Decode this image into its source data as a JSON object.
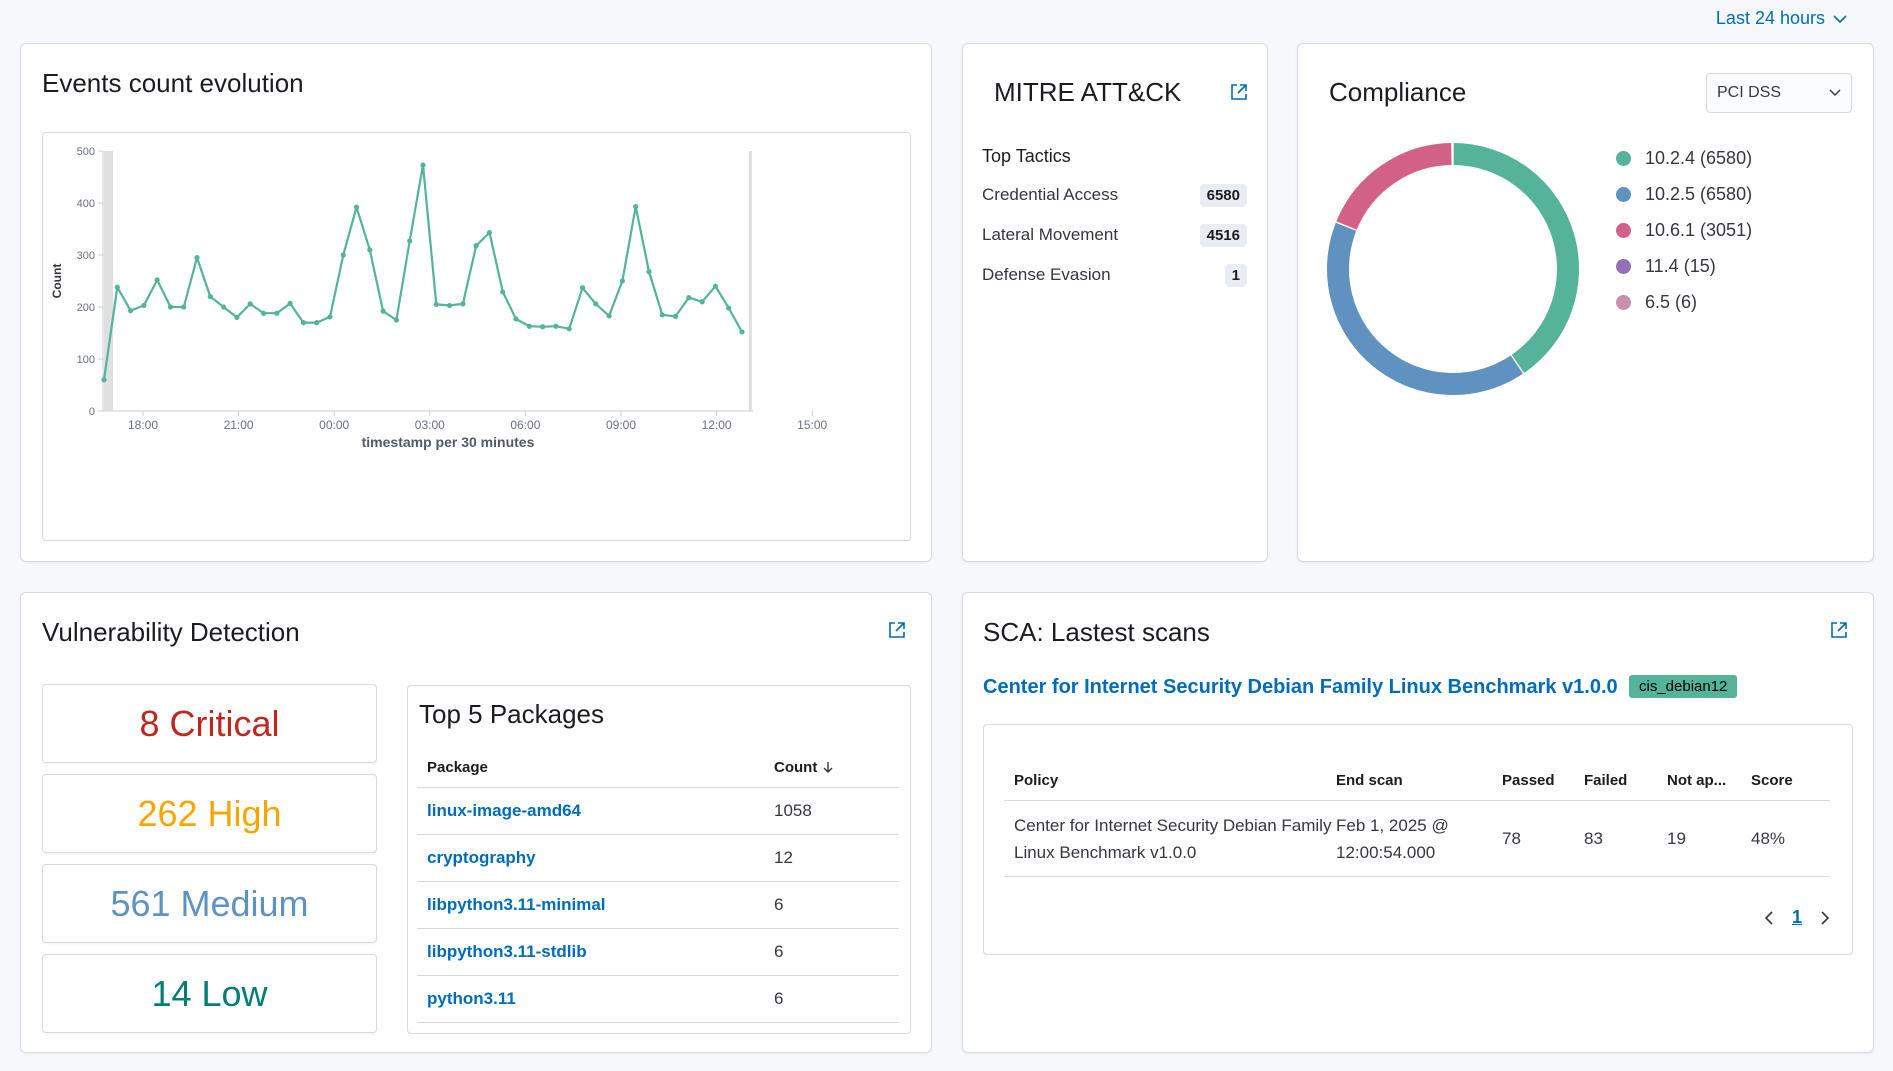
{
  "timepicker": {
    "label": "Last 24 hours"
  },
  "events": {
    "title": "Events count evolution",
    "chart_data": {
      "type": "line",
      "ylabel": "Count",
      "xlabel": "timestamp per 30 minutes",
      "ylim": [
        0,
        500
      ],
      "yticks": [
        0,
        100,
        200,
        300,
        400,
        500
      ],
      "xticks": [
        "18:00",
        "21:00",
        "00:00",
        "03:00",
        "06:00",
        "09:00",
        "12:00",
        "15:00"
      ],
      "color": "#54b399",
      "values": [
        60,
        238,
        193,
        203,
        252,
        200,
        200,
        295,
        220,
        200,
        180,
        206,
        188,
        188,
        207,
        170,
        170,
        181,
        300,
        392,
        310,
        192,
        175,
        327,
        473,
        205,
        203,
        206,
        318,
        343,
        229,
        177,
        163,
        162,
        163,
        158,
        237,
        206,
        183,
        250,
        393,
        268,
        185,
        182,
        218,
        210,
        240,
        198,
        152
      ]
    }
  },
  "mitre": {
    "title": "MITRE ATT&CK",
    "subtitle": "Top Tactics",
    "tactics": [
      {
        "name": "Credential Access",
        "count": "6580"
      },
      {
        "name": "Lateral Movement",
        "count": "4516"
      },
      {
        "name": "Defense Evasion",
        "count": "1"
      }
    ]
  },
  "compliance": {
    "title": "Compliance",
    "select_value": "PCI DSS",
    "chart_data": {
      "type": "pie",
      "categories": [
        "10.2.4",
        "10.2.5",
        "10.6.1",
        "11.4",
        "6.5"
      ],
      "values": [
        6580,
        6580,
        3051,
        15,
        6
      ],
      "colors": [
        "#54b399",
        "#6092c0",
        "#d36086",
        "#9170b8",
        "#ca8eae"
      ]
    },
    "legend": [
      "10.2.4 (6580)",
      "10.2.5 (6580)",
      "10.6.1 (3051)",
      "11.4 (15)",
      "6.5 (6)"
    ]
  },
  "vuln": {
    "title": "Vulnerability Detection",
    "severities": [
      {
        "label": "8 Critical",
        "color": "#bd271e"
      },
      {
        "label": "262 High",
        "color": "#f5a700"
      },
      {
        "label": "561 Medium",
        "color": "#6092c0"
      },
      {
        "label": "14 Low",
        "color": "#017d73"
      }
    ],
    "packages_title": "Top 5 Packages",
    "col_package": "Package",
    "col_count": "Count",
    "packages": [
      {
        "name": "linux-image-amd64",
        "count": "1058"
      },
      {
        "name": "cryptography",
        "count": "12"
      },
      {
        "name": "libpython3.11-minimal",
        "count": "6"
      },
      {
        "name": "libpython3.11-stdlib",
        "count": "6"
      },
      {
        "name": "python3.11",
        "count": "6"
      }
    ]
  },
  "sca": {
    "title": "SCA: Lastest scans",
    "benchmark": "Center for Internet Security Debian Family Linux Benchmark v1.0.0",
    "tag": "cis_debian12",
    "headers": [
      "Policy",
      "End scan",
      "Passed",
      "Failed",
      "Not ap...",
      "Score"
    ],
    "row": {
      "policy": "Center for Internet Security Debian Family Linux Benchmark v1.0.0",
      "end_scan": "Feb 1, 2025 @ 12:00:54.000",
      "passed": "78",
      "failed": "83",
      "not_applicable": "19",
      "score": "48%"
    },
    "page": "1"
  }
}
